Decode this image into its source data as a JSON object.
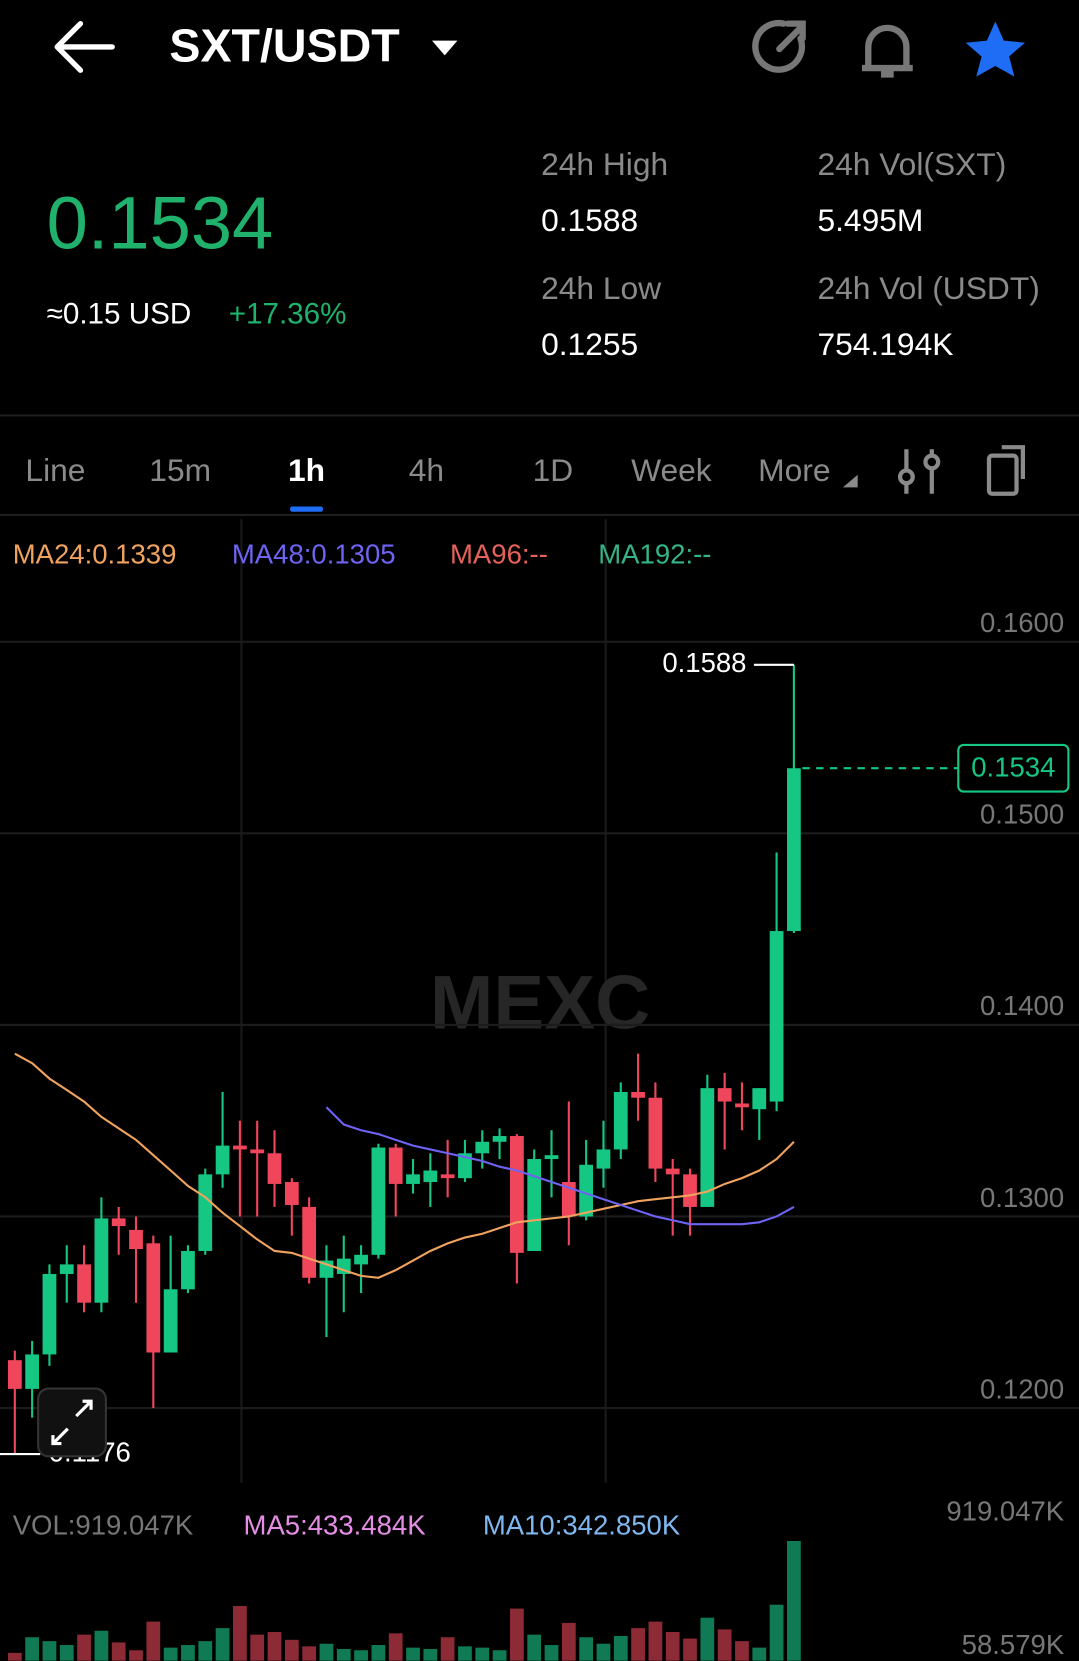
{
  "header": {
    "pair": "SXT/USDT"
  },
  "ticker": {
    "price": "0.1534",
    "usd": "≈0.15 USD",
    "change": "+17.36%",
    "stats": [
      {
        "label": "24h High",
        "value": "0.1588"
      },
      {
        "label": "24h Vol(SXT)",
        "value": "5.495M"
      },
      {
        "label": "24h Low",
        "value": "0.1255"
      },
      {
        "label": "24h Vol (USDT)",
        "value": "754.194K"
      }
    ]
  },
  "tabs": [
    "Line",
    "15m",
    "1h",
    "4h",
    "1D",
    "Week",
    "More"
  ],
  "indicators": [
    {
      "text": "MA24:0.1339",
      "color": "#f0a35e"
    },
    {
      "text": "MA48:0.1305",
      "color": "#6e63f2"
    },
    {
      "text": "MA96:--",
      "color": "#e5625a"
    },
    {
      "text": "MA192:--",
      "color": "#35b487"
    }
  ],
  "volume_indicators": [
    {
      "text": "VOL:919.047K",
      "color": "#777777"
    },
    {
      "text": "MA5:433.484K",
      "color": "#e58ee5"
    },
    {
      "text": "MA10:342.850K",
      "color": "#7fb8f0"
    }
  ],
  "watermark": "MEXC",
  "chart_data": [
    {
      "type": "candlestick",
      "up_color": "#16c784",
      "down_color": "#f0465c",
      "open": [
        0.1225,
        0.121,
        0.1228,
        0.127,
        0.1275,
        0.1255,
        0.1299,
        0.1293,
        0.1286,
        0.1229,
        0.1262,
        0.1282,
        0.1322,
        0.1337,
        0.1335,
        0.1333,
        0.1318,
        0.1305,
        0.1268,
        0.127,
        0.1275,
        0.128,
        0.1336,
        0.1317,
        0.1318,
        0.1322,
        0.132,
        0.1333,
        0.1339,
        0.1342,
        0.1282,
        0.133,
        0.1318,
        0.13,
        0.1325,
        0.1335,
        0.1365,
        0.1362,
        0.1325,
        0.1322,
        0.1305,
        0.1367,
        0.1359,
        0.1356,
        0.136,
        0.1449
      ],
      "high": [
        0.123,
        0.1235,
        0.1275,
        0.1285,
        0.1285,
        0.131,
        0.1305,
        0.13,
        0.129,
        0.129,
        0.1285,
        0.1325,
        0.1365,
        0.135,
        0.135,
        0.1345,
        0.132,
        0.131,
        0.1285,
        0.129,
        0.1285,
        0.1338,
        0.1338,
        0.133,
        0.1333,
        0.134,
        0.134,
        0.1345,
        0.1346,
        0.1343,
        0.1335,
        0.1345,
        0.136,
        0.134,
        0.135,
        0.137,
        0.1385,
        0.137,
        0.133,
        0.1325,
        0.1374,
        0.1375,
        0.137,
        0.1367,
        0.149,
        0.1588
      ],
      "low": [
        0.1176,
        0.1195,
        0.1222,
        0.1255,
        0.125,
        0.125,
        0.128,
        0.1255,
        0.12,
        0.1229,
        0.126,
        0.128,
        0.1315,
        0.13,
        0.13,
        0.1305,
        0.129,
        0.1265,
        0.1237,
        0.125,
        0.126,
        0.1278,
        0.13,
        0.1312,
        0.1305,
        0.131,
        0.1318,
        0.1325,
        0.133,
        0.1265,
        0.1282,
        0.131,
        0.1285,
        0.1298,
        0.1315,
        0.133,
        0.135,
        0.1318,
        0.129,
        0.129,
        0.1305,
        0.1335,
        0.1345,
        0.134,
        0.1355,
        0.1448
      ],
      "close": [
        0.121,
        0.1228,
        0.127,
        0.1275,
        0.1255,
        0.1299,
        0.1295,
        0.1283,
        0.1229,
        0.1262,
        0.1282,
        0.1322,
        0.1337,
        0.1335,
        0.1333,
        0.1317,
        0.1306,
        0.1268,
        0.1277,
        0.1278,
        0.128,
        0.1336,
        0.1317,
        0.1322,
        0.1324,
        0.132,
        0.1333,
        0.1339,
        0.1342,
        0.1281,
        0.133,
        0.1332,
        0.13,
        0.1327,
        0.1335,
        0.1365,
        0.1362,
        0.1325,
        0.1322,
        0.1305,
        0.1367,
        0.136,
        0.1357,
        0.1367,
        0.1449,
        0.1534
      ],
      "series": [
        {
          "color": "#f0a35e",
          "values": [
            0.1385,
            0.138,
            0.1372,
            0.1366,
            0.136,
            0.1352,
            0.1346,
            0.134,
            0.1332,
            0.1324,
            0.1316,
            0.131,
            0.1302,
            0.1295,
            0.1288,
            0.1282,
            0.1281,
            0.1278,
            0.1275,
            0.1272,
            0.1269,
            0.1268,
            0.1272,
            0.1277,
            0.1282,
            0.1286,
            0.1289,
            0.1291,
            0.1294,
            0.1297,
            0.1298,
            0.1299,
            0.13,
            0.1302,
            0.1304,
            0.1306,
            0.1308,
            0.1309,
            0.131,
            0.1311,
            0.1313,
            0.1317,
            0.132,
            0.1324,
            0.133,
            0.1339
          ]
        },
        {
          "color": "#6e63f2",
          "values": [
            null,
            null,
            null,
            null,
            null,
            null,
            null,
            null,
            null,
            null,
            null,
            null,
            null,
            null,
            null,
            null,
            null,
            null,
            0.1357,
            0.1348,
            0.1345,
            0.1343,
            0.134,
            0.1337,
            0.1335,
            0.1333,
            0.1331,
            0.1329,
            0.1326,
            0.1324,
            0.1321,
            0.1318,
            0.1315,
            0.1312,
            0.1309,
            0.1306,
            0.1303,
            0.13,
            0.1298,
            0.1296,
            0.1296,
            0.1296,
            0.1296,
            0.1297,
            0.13,
            0.1305
          ]
        }
      ],
      "ylim": [
        0.1161,
        0.1664
      ],
      "yticks": [
        {
          "value": 0.12,
          "label": "0.1200"
        },
        {
          "value": 0.13,
          "label": "0.1300"
        },
        {
          "value": 0.14,
          "label": "0.1400"
        },
        {
          "value": 0.15,
          "label": "0.1500"
        },
        {
          "value": 0.16,
          "label": "0.1600"
        }
      ],
      "grid": true,
      "high_marker": 0.1588,
      "low_marker": 0.1176,
      "last_price": 0.1534
    },
    {
      "type": "bar",
      "values": [
        60000,
        180000,
        150000,
        120000,
        200000,
        230000,
        140000,
        80000,
        300000,
        100000,
        120000,
        150000,
        250000,
        420000,
        200000,
        220000,
        160000,
        110000,
        130000,
        90000,
        80000,
        120000,
        210000,
        100000,
        90000,
        180000,
        110000,
        100000,
        80000,
        400000,
        200000,
        120000,
        290000,
        180000,
        130000,
        190000,
        250000,
        300000,
        220000,
        170000,
        330000,
        240000,
        150000,
        100000,
        430000,
        919047
      ],
      "ylim": [
        0,
        919047
      ],
      "yticks": [
        {
          "value": 919047,
          "label": "919.047K"
        },
        {
          "value": 58579,
          "label": "58.579K"
        }
      ]
    }
  ]
}
